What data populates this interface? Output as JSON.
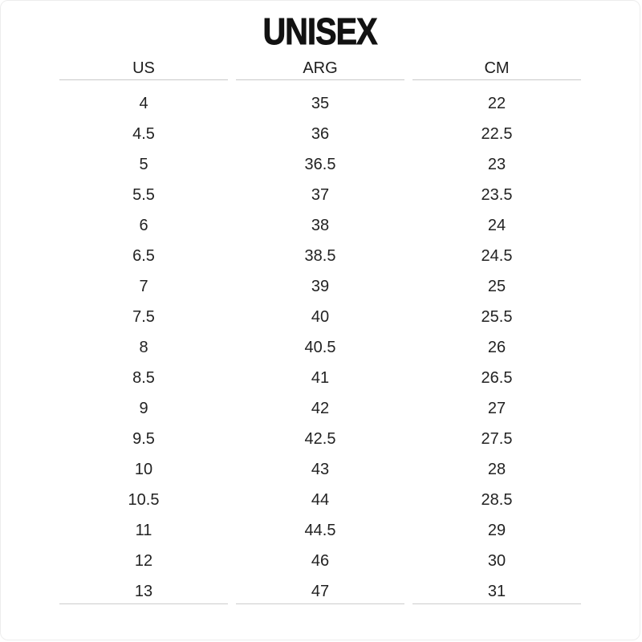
{
  "title": "UNISEX",
  "table": {
    "headers": [
      "US",
      "ARG",
      "CM"
    ],
    "rows": [
      {
        "us": "4",
        "arg": "35",
        "cm": "22"
      },
      {
        "us": "4.5",
        "arg": "36",
        "cm": "22.5"
      },
      {
        "us": "5",
        "arg": "36.5",
        "cm": "23"
      },
      {
        "us": "5.5",
        "arg": "37",
        "cm": "23.5"
      },
      {
        "us": "6",
        "arg": "38",
        "cm": "24"
      },
      {
        "us": "6.5",
        "arg": "38.5",
        "cm": "24.5"
      },
      {
        "us": "7",
        "arg": "39",
        "cm": "25"
      },
      {
        "us": "7.5",
        "arg": "40",
        "cm": "25.5"
      },
      {
        "us": "8",
        "arg": "40.5",
        "cm": "26"
      },
      {
        "us": "8.5",
        "arg": "41",
        "cm": "26.5"
      },
      {
        "us": "9",
        "arg": "42",
        "cm": "27"
      },
      {
        "us": "9.5",
        "arg": "42.5",
        "cm": "27.5"
      },
      {
        "us": "10",
        "arg": "43",
        "cm": "28"
      },
      {
        "us": "10.5",
        "arg": "44",
        "cm": "28.5"
      },
      {
        "us": "11",
        "arg": "44.5",
        "cm": "29"
      },
      {
        "us": "12",
        "arg": "46",
        "cm": "30"
      },
      {
        "us": "13",
        "arg": "47",
        "cm": "31"
      }
    ]
  },
  "colors": {
    "title_text": "#121212",
    "body_text": "#222222",
    "rule_line": "#cccccc",
    "card_border": "#ededed",
    "background": "#ffffff"
  }
}
